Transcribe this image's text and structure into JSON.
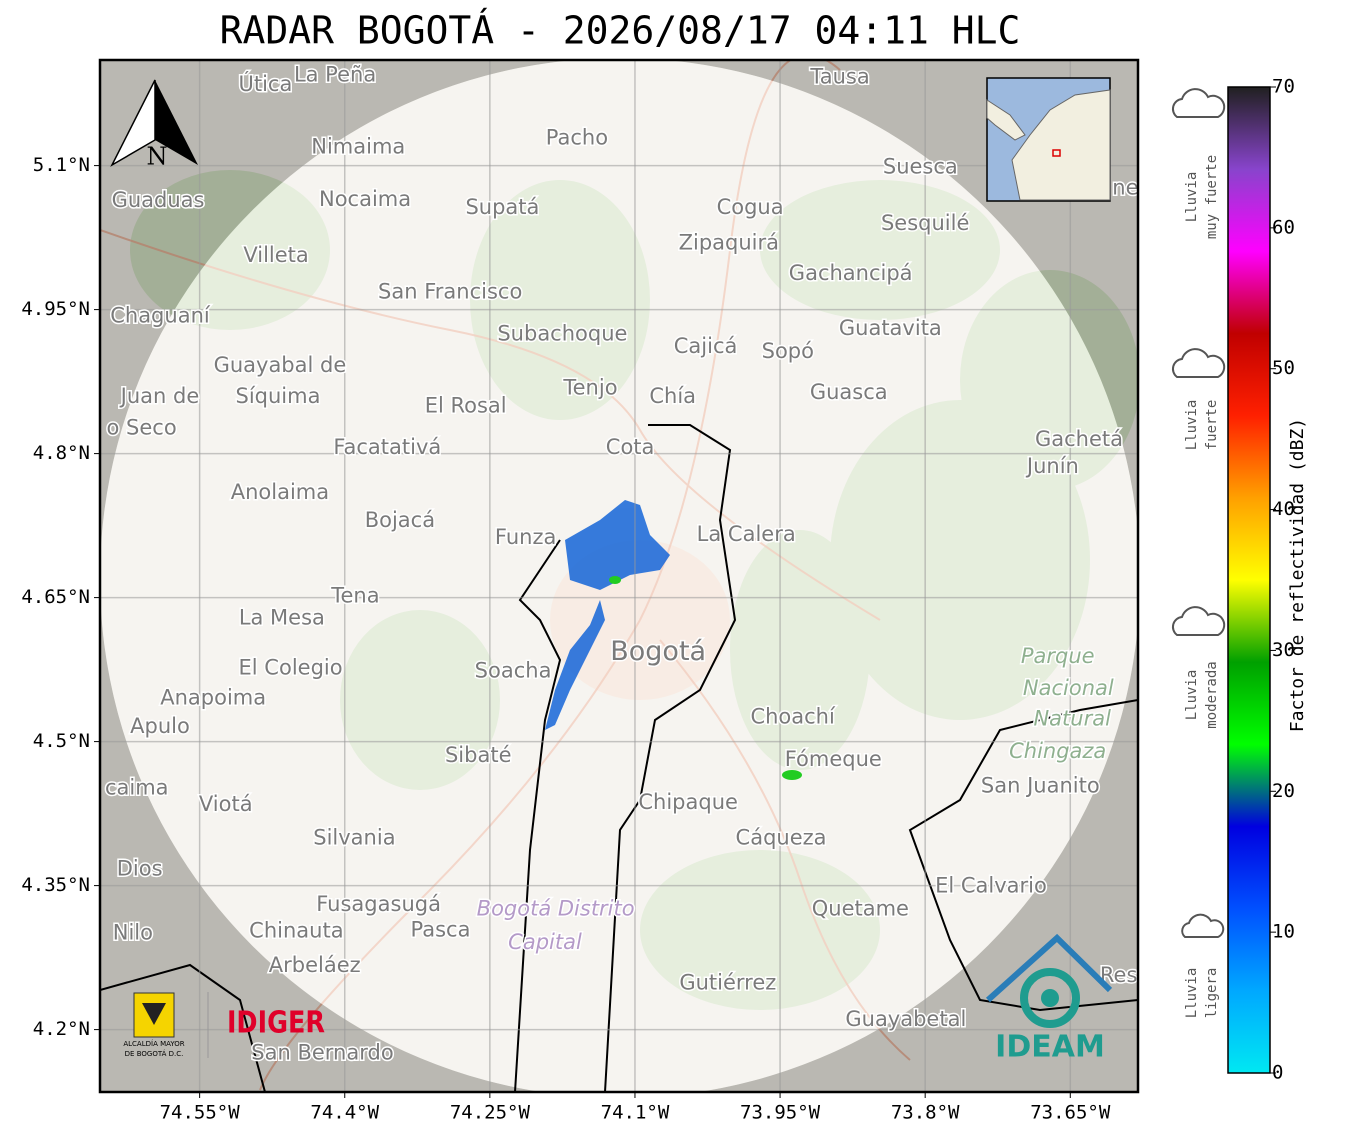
{
  "title": "RADAR BOGOTÁ - 2026/08/17 04:11 HLC",
  "map": {
    "xlim": [
      -74.653,
      -73.58
    ],
    "ylim": [
      4.135,
      5.21
    ],
    "xticks": [
      {
        "value": -74.55,
        "label": "74.55°W"
      },
      {
        "value": -74.4,
        "label": "74.4°W"
      },
      {
        "value": -74.25,
        "label": "74.25°W"
      },
      {
        "value": -74.1,
        "label": "74.1°W"
      },
      {
        "value": -73.95,
        "label": "73.95°W"
      },
      {
        "value": -73.8,
        "label": "73.8°W"
      },
      {
        "value": -73.65,
        "label": "73.65°W"
      }
    ],
    "yticks": [
      {
        "value": 4.2,
        "label": "4.2°N"
      },
      {
        "value": 4.35,
        "label": "4.35°N"
      },
      {
        "value": 4.5,
        "label": "4.5°N"
      },
      {
        "value": 4.65,
        "label": "4.65°N"
      },
      {
        "value": 4.8,
        "label": "4.8°N"
      },
      {
        "value": 4.95,
        "label": "4.95°N"
      },
      {
        "value": 5.1,
        "label": "5.1°N"
      }
    ],
    "grid": true,
    "north_label": "N",
    "capital": {
      "label": "Bogotá",
      "lon": -74.076,
      "lat": 4.593
    },
    "places": [
      {
        "label": "Útica",
        "lon": -74.482,
        "lat": 5.184
      },
      {
        "label": "La Peña",
        "lon": -74.41,
        "lat": 5.194
      },
      {
        "label": "Tausa",
        "lon": -73.888,
        "lat": 5.192
      },
      {
        "label": "Pacho",
        "lon": -74.16,
        "lat": 5.128
      },
      {
        "label": "Nimaima",
        "lon": -74.386,
        "lat": 5.119
      },
      {
        "label": "Guaduas",
        "lon": -74.593,
        "lat": 5.063
      },
      {
        "label": "Nocaima",
        "lon": -74.379,
        "lat": 5.064
      },
      {
        "label": "Supatá",
        "lon": -74.237,
        "lat": 5.056
      },
      {
        "label": "Cogua",
        "lon": -73.981,
        "lat": 5.056
      },
      {
        "label": "Suesca",
        "lon": -73.805,
        "lat": 5.098
      },
      {
        "label": "ne",
        "lon": -73.593,
        "lat": 5.076
      },
      {
        "label": "Sesquilé",
        "lon": -73.8,
        "lat": 5.039
      },
      {
        "label": "Zipaquirá",
        "lon": -74.003,
        "lat": 5.019
      },
      {
        "label": "Villeta",
        "lon": -74.471,
        "lat": 5.006
      },
      {
        "label": "Gachancipá",
        "lon": -73.877,
        "lat": 4.987
      },
      {
        "label": "San Francisco",
        "lon": -74.291,
        "lat": 4.968
      },
      {
        "label": "Chaguaní",
        "lon": -74.591,
        "lat": 4.943
      },
      {
        "label": "Guatavita",
        "lon": -73.836,
        "lat": 4.93
      },
      {
        "label": "Subachoque",
        "lon": -74.175,
        "lat": 4.924
      },
      {
        "label": "Cajicá",
        "lon": -74.027,
        "lat": 4.911
      },
      {
        "label": "Sopó",
        "lon": -73.942,
        "lat": 4.906
      },
      {
        "label": "Guayabal de",
        "lon": -74.467,
        "lat": 4.891
      },
      {
        "label": "Síquima",
        "lon": -74.469,
        "lat": 4.859
      },
      {
        "label": "Juan de",
        "lon": -74.591,
        "lat": 4.859
      },
      {
        "label": "Tenjo",
        "lon": -74.146,
        "lat": 4.868
      },
      {
        "label": "Chía",
        "lon": -74.061,
        "lat": 4.859
      },
      {
        "label": "Guasca",
        "lon": -73.879,
        "lat": 4.863
      },
      {
        "label": "El Rosal",
        "lon": -74.275,
        "lat": 4.849
      },
      {
        "label": "o Seco",
        "lon": -74.61,
        "lat": 4.826
      },
      {
        "label": "Facatativá",
        "lon": -74.356,
        "lat": 4.806
      },
      {
        "label": "Cota",
        "lon": -74.105,
        "lat": 4.806
      },
      {
        "label": "Gachetá",
        "lon": -73.641,
        "lat": 4.814
      },
      {
        "label": "Junín",
        "lon": -73.668,
        "lat": 4.786
      },
      {
        "label": "Anolaima",
        "lon": -74.467,
        "lat": 4.759
      },
      {
        "label": "Bojacá",
        "lon": -74.343,
        "lat": 4.73
      },
      {
        "label": "Funza",
        "lon": -74.213,
        "lat": 4.712
      },
      {
        "label": "La Calera",
        "lon": -73.985,
        "lat": 4.715
      },
      {
        "label": "Tena",
        "lon": -74.389,
        "lat": 4.651
      },
      {
        "label": "La Mesa",
        "lon": -74.465,
        "lat": 4.628
      },
      {
        "label": "El Colegio",
        "lon": -74.456,
        "lat": 4.576
      },
      {
        "label": "Soacha",
        "lon": -74.226,
        "lat": 4.573
      },
      {
        "label": "Anapoima",
        "lon": -74.536,
        "lat": 4.545
      },
      {
        "label": "Apulo",
        "lon": -74.591,
        "lat": 4.515
      },
      {
        "label": "Choachí",
        "lon": -73.937,
        "lat": 4.525
      },
      {
        "label": "Sibaté",
        "lon": -74.262,
        "lat": 4.485
      },
      {
        "label": "Fómeque",
        "lon": -73.895,
        "lat": 4.481
      },
      {
        "label": "San Juanito",
        "lon": -73.681,
        "lat": 4.453
      },
      {
        "label": "caima",
        "lon": -74.615,
        "lat": 4.451
      },
      {
        "label": "Viotá",
        "lon": -74.523,
        "lat": 4.434
      },
      {
        "label": "Chipaque",
        "lon": -74.045,
        "lat": 4.436
      },
      {
        "label": "Silvania",
        "lon": -74.39,
        "lat": 4.399
      },
      {
        "label": "Cáqueza",
        "lon": -73.949,
        "lat": 4.399
      },
      {
        "label": "Dios",
        "lon": -74.612,
        "lat": 4.367
      },
      {
        "label": "El Calvario",
        "lon": -73.732,
        "lat": 4.349
      },
      {
        "label": "Fusagasugá",
        "lon": -74.365,
        "lat": 4.33
      },
      {
        "label": "Quetame",
        "lon": -73.867,
        "lat": 4.325
      },
      {
        "label": "Nilo",
        "lon": -74.619,
        "lat": 4.3
      },
      {
        "label": "Chinauta",
        "lon": -74.45,
        "lat": 4.302
      },
      {
        "label": "Pasca",
        "lon": -74.301,
        "lat": 4.303
      },
      {
        "label": "Arbeláez",
        "lon": -74.431,
        "lat": 4.266
      },
      {
        "label": "Gutiérrez",
        "lon": -74.004,
        "lat": 4.248
      },
      {
        "label": "Res",
        "lon": -73.6,
        "lat": 4.256
      },
      {
        "label": "Guayabetal",
        "lon": -73.82,
        "lat": 4.21
      },
      {
        "label": "San Bernardo",
        "lon": -74.423,
        "lat": 4.175
      }
    ],
    "park_labels": [
      {
        "label": "Parque",
        "lon": -73.663,
        "lat": 4.588
      },
      {
        "label": "Nacional",
        "lon": -73.652,
        "lat": 4.555
      },
      {
        "label": "Natural",
        "lon": -73.648,
        "lat": 4.523
      },
      {
        "label": "Chingaza",
        "lon": -73.663,
        "lat": 4.489
      }
    ],
    "district_labels": [
      {
        "label": "Bogotá Distrito",
        "lon": -74.182,
        "lat": 4.325
      },
      {
        "label": "Capital",
        "lon": -74.193,
        "lat": 4.29
      }
    ]
  },
  "logos": {
    "idiger": "IDIGER",
    "ideam": "IDEAM",
    "alcaldia": [
      "ALCALDÍA MAYOR",
      "DE BOGOTÁ D.C."
    ]
  },
  "colorbar": {
    "label": "Factor de reflectividad (dBZ)",
    "lim": [
      0,
      70
    ],
    "ticks": [
      0,
      10,
      20,
      30,
      40,
      50,
      60,
      70
    ],
    "colors": [
      "#00e8f2",
      "#00a8ff",
      "#0050ff",
      "#0000e0",
      "#00ff00",
      "#00a000",
      "#ffff00",
      "#ffa000",
      "#ff2000",
      "#c00000",
      "#ff00ff",
      "#8844cc",
      "#202020"
    ],
    "rain_labels": [
      [
        "Lluvia",
        "muy fuerte"
      ],
      [
        "Lluvia",
        "fuerte"
      ],
      [
        "Lluvia",
        "moderada"
      ],
      [
        "Lluvia",
        "ligera"
      ]
    ]
  }
}
